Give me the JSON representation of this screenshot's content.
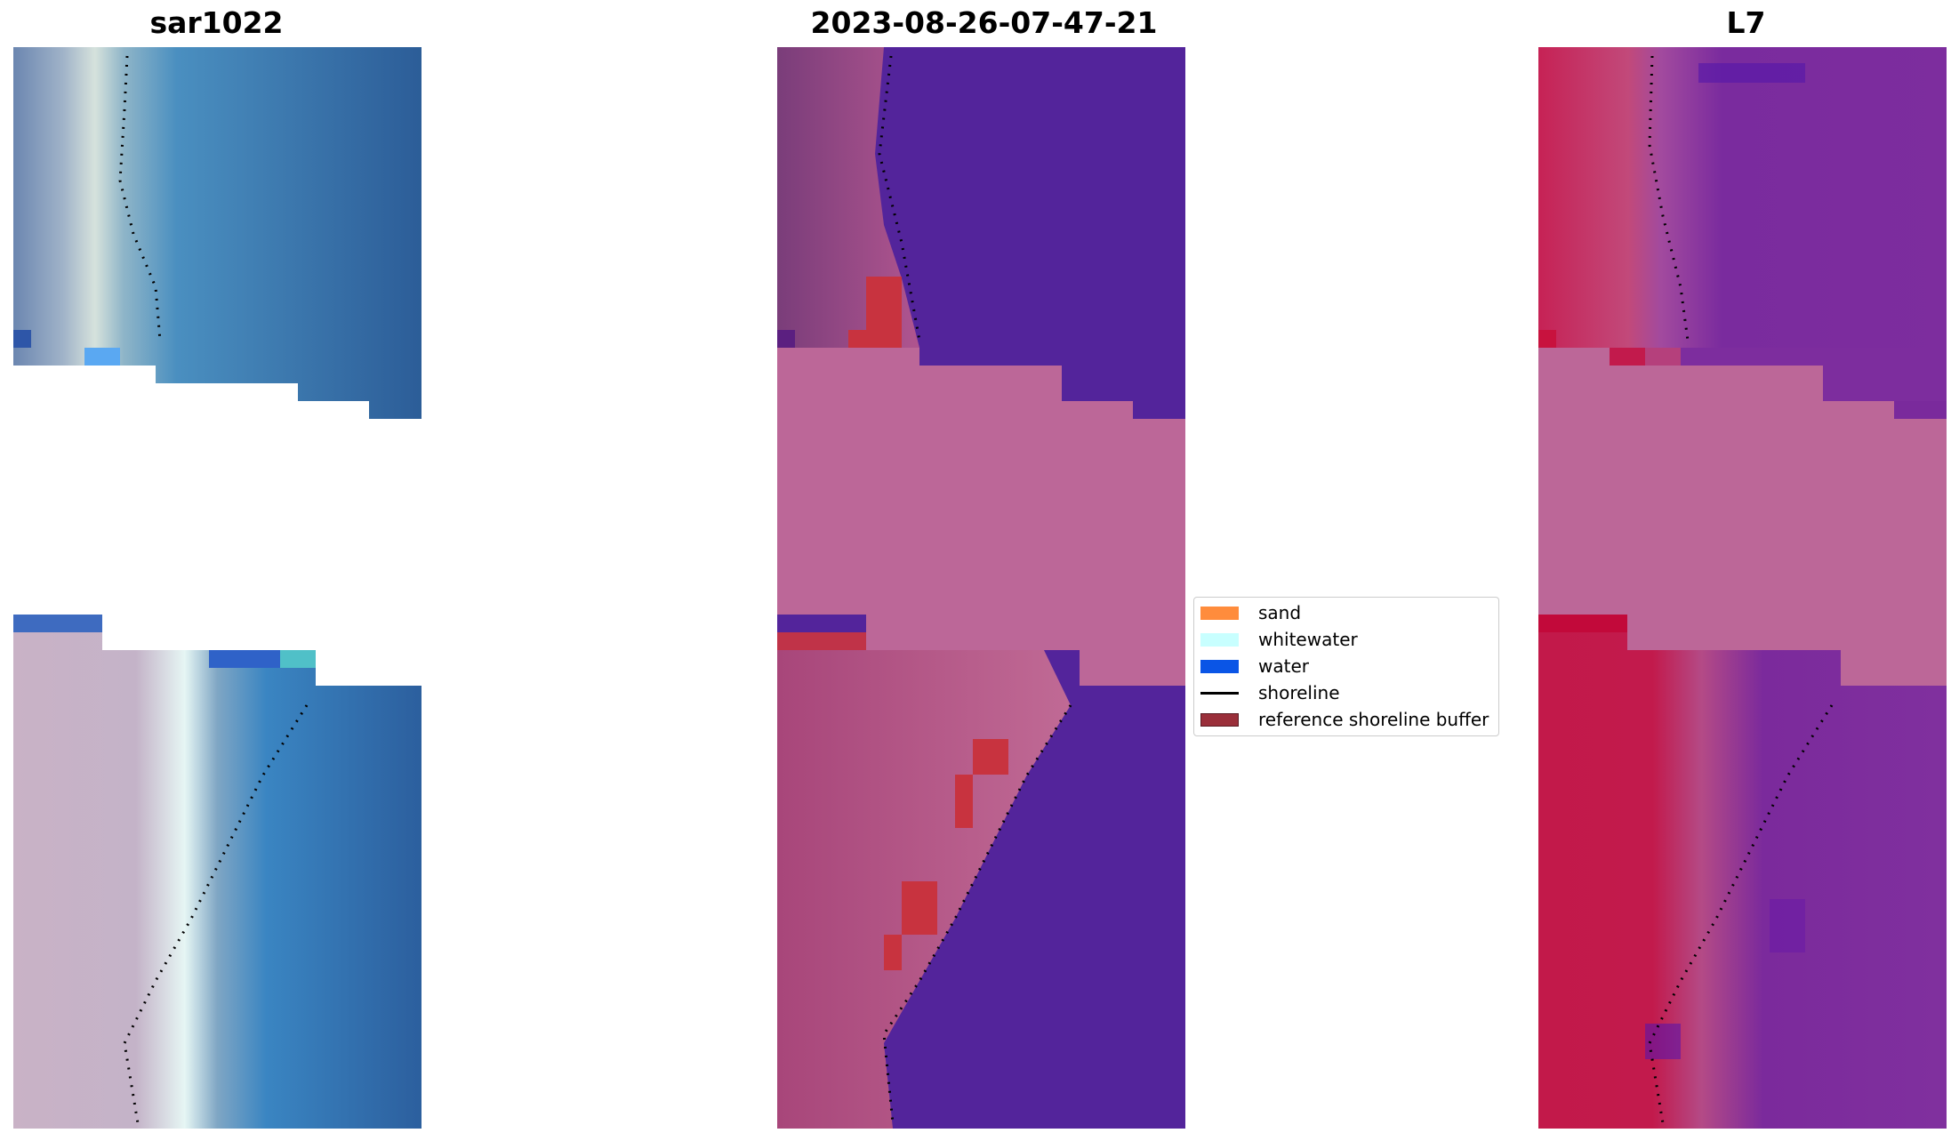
{
  "panels": [
    {
      "title": "sar1022",
      "kind": "rgb"
    },
    {
      "title": "2023-08-26-07-47-21",
      "kind": "classified"
    },
    {
      "title": "L7",
      "kind": "index"
    }
  ],
  "legend": {
    "items": [
      {
        "label": "sand",
        "color": "#ff8c3c",
        "style": "patch"
      },
      {
        "label": "whitewater",
        "color": "#c8ffff",
        "style": "patch"
      },
      {
        "label": "water",
        "color": "#0a55e6",
        "style": "patch"
      },
      {
        "label": "shoreline",
        "color": "#000000",
        "style": "line"
      },
      {
        "label": "reference shoreline buffer",
        "color": "#9a2f3a",
        "style": "patch"
      }
    ]
  },
  "colors": {
    "nodata_pink": "#bc6798",
    "water_purple": "#53249b",
    "land_magenta": "#b84873",
    "buffer_red": "#c8333f",
    "index_red": "#c2194a",
    "index_purple": "#7d2d9e",
    "rgb_water": "#2d67a6",
    "rgb_land": "#c8b3c6",
    "whitewater_light": "#e6f6f4"
  }
}
